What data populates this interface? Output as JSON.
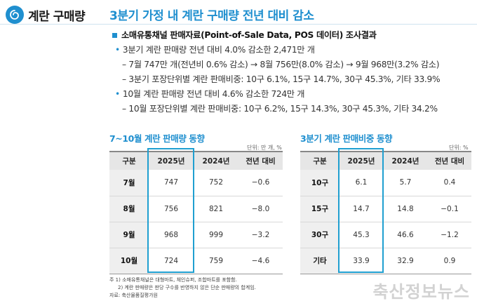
{
  "side": {
    "title": "계란 구매량"
  },
  "headline": "3분기 가정 내 계란 구매량 전년 대비 감소",
  "bullets": {
    "main": "소매유통채널 판매자료(Point-of-Sale Data, POS 데이터) 조사결과",
    "l1": "3분기 계란 판매량 전년 대비 4.0% 감소한 2,471만 개",
    "l1a": "– 7월 747만 개(전년비 0.6% 감소) → 8월 756만(8.0% 감소) → 9월 968만(3.2% 감소)",
    "l1b": "– 3분기 포장단위별 계란 판매비중: 10구 6.1%, 15구 14.7%, 30구 45.3%, 기타 33.9%",
    "l2": "10월 계란 판매량 전년 대비 4.6% 감소한 724만 개",
    "l2a": "– 10월 포장단위별 계란 판매비중: 10구 6.2%, 15구 14.3%, 30구 45.3%, 기타 34.2%"
  },
  "table1": {
    "title": "7~10월 계란 판매량 동향",
    "unit": "단위: 만 개, %",
    "headers": [
      "구분",
      "2025년",
      "2024년",
      "전년 대비"
    ],
    "rows": [
      [
        "7월",
        "747",
        "752",
        "−0.6"
      ],
      [
        "8월",
        "756",
        "821",
        "−8.0"
      ],
      [
        "9월",
        "968",
        "999",
        "−3.2"
      ],
      [
        "10월",
        "724",
        "759",
        "−4.6"
      ]
    ]
  },
  "table2": {
    "title": "3분기 계란 판매비중 동향",
    "unit": "단위: %",
    "headers": [
      "구분",
      "2025년",
      "2024년",
      "전년 대비"
    ],
    "rows": [
      [
        "10구",
        "6.1",
        "5.7",
        "0.4"
      ],
      [
        "15구",
        "14.7",
        "14.8",
        "−0.1"
      ],
      [
        "30구",
        "45.3",
        "46.6",
        "−1.2"
      ],
      [
        "기타",
        "33.9",
        "32.9",
        "0.9"
      ]
    ]
  },
  "notes": {
    "n1": "주 1) 소매유통채널은 대형마트, 체인슈퍼, 조합마트를 포함함.",
    "n2": "2) 계란 판매량은 판당 구수를 반영하지 않은 단순 판매량의 합계임.",
    "source": "자료: 축산물품질평가원"
  },
  "watermark": "축산정보뉴스",
  "colors": {
    "accent": "#1f8fcf",
    "highlight": "#1f9fd0"
  }
}
